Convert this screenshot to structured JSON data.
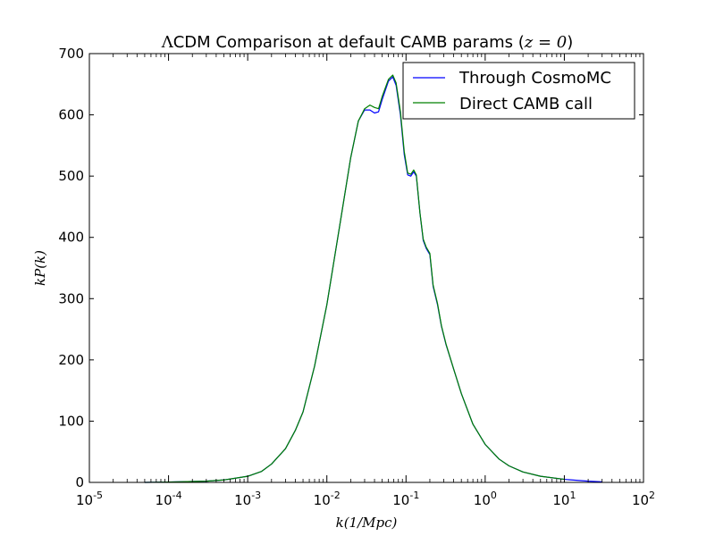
{
  "chart_data": {
    "type": "line",
    "title_prefix": "Λ",
    "title_main": "CDM Comparison at default CAMB params (",
    "title_math": "z = 0",
    "title_suffix": ")",
    "xlabel": "k(1/Mpc)",
    "ylabel": "kP(k)",
    "xscale": "log",
    "xlim": [
      1e-05,
      100
    ],
    "ylim": [
      0,
      700
    ],
    "yticks": [
      0,
      100,
      200,
      300,
      400,
      500,
      600,
      700
    ],
    "xticks": [
      {
        "exp": -5,
        "base": "10",
        "sup": "-5"
      },
      {
        "exp": -4,
        "base": "10",
        "sup": "-4"
      },
      {
        "exp": -3,
        "base": "10",
        "sup": "-3"
      },
      {
        "exp": -2,
        "base": "10",
        "sup": "-2"
      },
      {
        "exp": -1,
        "base": "10",
        "sup": "-1"
      },
      {
        "exp": 0,
        "base": "10",
        "sup": "0"
      },
      {
        "exp": 1,
        "base": "10",
        "sup": "1"
      },
      {
        "exp": 2,
        "base": "10",
        "sup": "2"
      }
    ],
    "grid": false,
    "legend_position": "top-right",
    "series": [
      {
        "name": "Through CosmoMC",
        "color": "#0000ff",
        "points": [
          [
            5e-05,
            0
          ],
          [
            0.0001,
            0.5
          ],
          [
            0.0003,
            2
          ],
          [
            0.0005,
            4
          ],
          [
            0.001,
            10
          ],
          [
            0.0015,
            18
          ],
          [
            0.002,
            30
          ],
          [
            0.003,
            55
          ],
          [
            0.004,
            85
          ],
          [
            0.005,
            115
          ],
          [
            0.007,
            190
          ],
          [
            0.01,
            290
          ],
          [
            0.015,
            430
          ],
          [
            0.02,
            530
          ],
          [
            0.025,
            590
          ],
          [
            0.03,
            608
          ],
          [
            0.035,
            608
          ],
          [
            0.04,
            603
          ],
          [
            0.045,
            605
          ],
          [
            0.05,
            625
          ],
          [
            0.06,
            655
          ],
          [
            0.068,
            662
          ],
          [
            0.075,
            648
          ],
          [
            0.085,
            600
          ],
          [
            0.095,
            535
          ],
          [
            0.105,
            502
          ],
          [
            0.115,
            500
          ],
          [
            0.125,
            507
          ],
          [
            0.135,
            500
          ],
          [
            0.15,
            440
          ],
          [
            0.165,
            395
          ],
          [
            0.18,
            382
          ],
          [
            0.2,
            372
          ],
          [
            0.22,
            320
          ],
          [
            0.25,
            290
          ],
          [
            0.28,
            255
          ],
          [
            0.32,
            225
          ],
          [
            0.4,
            185
          ],
          [
            0.5,
            145
          ],
          [
            0.7,
            95
          ],
          [
            1,
            62
          ],
          [
            1.5,
            38
          ],
          [
            2,
            27
          ],
          [
            3,
            17
          ],
          [
            5,
            10
          ],
          [
            10,
            5
          ],
          [
            20,
            2
          ],
          [
            30,
            1
          ]
        ]
      },
      {
        "name": "Direct CAMB call",
        "color": "#008000",
        "points": [
          [
            5e-05,
            0
          ],
          [
            0.0001,
            0.5
          ],
          [
            0.0003,
            2
          ],
          [
            0.0005,
            4
          ],
          [
            0.001,
            10
          ],
          [
            0.0015,
            18
          ],
          [
            0.002,
            30
          ],
          [
            0.003,
            55
          ],
          [
            0.004,
            85
          ],
          [
            0.005,
            115
          ],
          [
            0.007,
            190
          ],
          [
            0.01,
            290
          ],
          [
            0.015,
            430
          ],
          [
            0.02,
            530
          ],
          [
            0.025,
            590
          ],
          [
            0.03,
            610
          ],
          [
            0.035,
            616
          ],
          [
            0.04,
            612
          ],
          [
            0.045,
            610
          ],
          [
            0.05,
            630
          ],
          [
            0.06,
            658
          ],
          [
            0.068,
            665
          ],
          [
            0.075,
            652
          ],
          [
            0.085,
            605
          ],
          [
            0.095,
            540
          ],
          [
            0.105,
            505
          ],
          [
            0.115,
            503
          ],
          [
            0.125,
            510
          ],
          [
            0.135,
            502
          ],
          [
            0.15,
            440
          ],
          [
            0.165,
            397
          ],
          [
            0.18,
            384
          ],
          [
            0.2,
            374
          ],
          [
            0.22,
            322
          ],
          [
            0.25,
            292
          ],
          [
            0.28,
            256
          ],
          [
            0.32,
            226
          ],
          [
            0.4,
            185
          ],
          [
            0.5,
            145
          ],
          [
            0.7,
            95
          ],
          [
            1,
            62
          ],
          [
            1.5,
            38
          ],
          [
            2,
            27
          ],
          [
            3,
            17
          ],
          [
            5,
            10
          ],
          [
            10,
            5
          ]
        ]
      }
    ]
  }
}
